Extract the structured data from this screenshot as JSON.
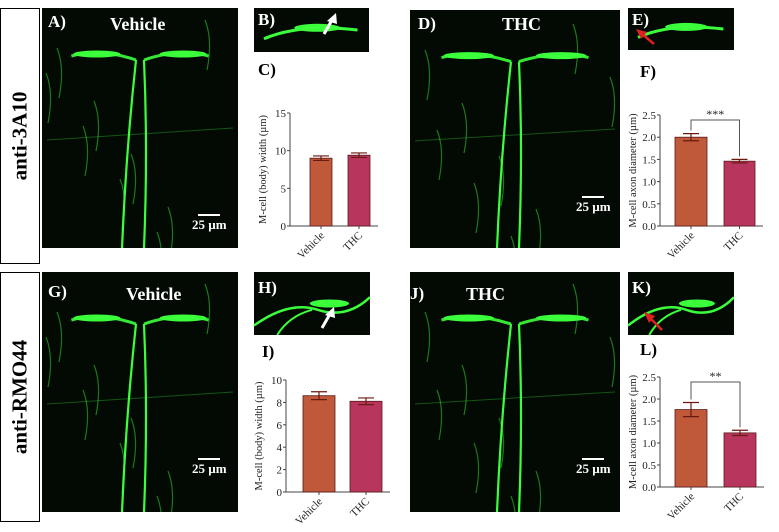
{
  "row_labels": [
    "anti-3A10",
    "anti-RMO44"
  ],
  "panels": {
    "A": {
      "label": "A)",
      "condition": "Vehicle",
      "scale": "25 µm"
    },
    "B": {
      "label": "B)"
    },
    "C": {
      "label": "C)"
    },
    "D": {
      "label": "D)",
      "condition": "THC",
      "scale": "25 µm"
    },
    "E": {
      "label": "E)"
    },
    "F": {
      "label": "F)"
    },
    "G": {
      "label": "G)",
      "condition": "Vehicle",
      "scale": "25 µm"
    },
    "H": {
      "label": "H)"
    },
    "I": {
      "label": "I)"
    },
    "J": {
      "label": "J)",
      "condition": "THC",
      "scale": "25 µm"
    },
    "K": {
      "label": "K)"
    },
    "L": {
      "label": "L)"
    }
  },
  "colors": {
    "vehicle": "#c0583a",
    "thc": "#b8365e",
    "fluor": "#3cff3c",
    "arrow_white": "#ffffff",
    "arrow_red": "#e02020"
  },
  "chart_data": [
    {
      "panel": "C",
      "type": "bar",
      "categories": [
        "Vehicle",
        "THC"
      ],
      "values": [
        9.0,
        9.4
      ],
      "errors": [
        0.3,
        0.3
      ],
      "ylabel": "M-cell (body) width (µm)",
      "ylim": [
        0,
        15
      ],
      "yticks": [
        "0",
        "5",
        "10",
        "15"
      ],
      "yticks_values": [
        0,
        5,
        10,
        15
      ],
      "significance": ""
    },
    {
      "panel": "F",
      "type": "bar",
      "categories": [
        "Vehicle",
        "THC"
      ],
      "values": [
        2.0,
        1.46
      ],
      "errors": [
        0.08,
        0.04
      ],
      "ylabel": "M-cell axon diameter (µm)",
      "ylim": [
        0,
        2.5
      ],
      "yticks": [
        "0.0",
        "0.5",
        "1.0",
        "1.5",
        "2.0",
        "2.5"
      ],
      "yticks_values": [
        0,
        0.5,
        1,
        1.5,
        2,
        2.5
      ],
      "significance": "***"
    },
    {
      "panel": "I",
      "type": "bar",
      "categories": [
        "Vehicle",
        "THC"
      ],
      "values": [
        8.6,
        8.1
      ],
      "errors": [
        0.35,
        0.3
      ],
      "ylabel": "M-cell (body) width (µm)",
      "ylim": [
        0,
        10
      ],
      "yticks": [
        "0",
        "2",
        "4",
        "6",
        "8",
        "10"
      ],
      "yticks_values": [
        0,
        2,
        4,
        6,
        8,
        10
      ],
      "significance": ""
    },
    {
      "panel": "L",
      "type": "bar",
      "categories": [
        "Vehicle",
        "THC"
      ],
      "values": [
        1.76,
        1.23
      ],
      "errors": [
        0.16,
        0.06
      ],
      "ylabel": "M-cell axon diameter (µm)",
      "ylim": [
        0,
        2.5
      ],
      "yticks": [
        "0.0",
        "0.5",
        "1.0",
        "1.5",
        "2.0",
        "2.5"
      ],
      "yticks_values": [
        0,
        0.5,
        1,
        1.5,
        2,
        2.5
      ],
      "significance": "**"
    }
  ]
}
